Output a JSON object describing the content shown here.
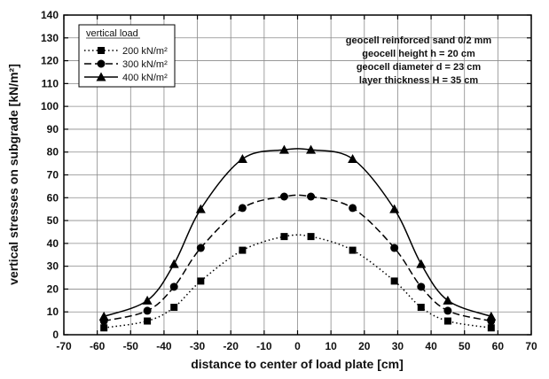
{
  "chart_data": {
    "type": "line",
    "xlabel": "distance to center of load plate [cm]",
    "ylabel": "vertical stresses on subgrade [kN/m²]",
    "xlim": [
      -70,
      70
    ],
    "ylim": [
      0,
      140
    ],
    "xticks": [
      -70,
      -60,
      -50,
      -40,
      -30,
      -20,
      -10,
      0,
      10,
      20,
      30,
      40,
      50,
      60,
      70
    ],
    "yticks": [
      0,
      10,
      20,
      30,
      40,
      50,
      60,
      70,
      80,
      90,
      100,
      110,
      120,
      130,
      140
    ],
    "grid": true,
    "legend": {
      "title": "vertical load",
      "placement": "top-left"
    },
    "annotation": [
      "geocell reinforced sand 0/2 mm",
      "geocell height h = 20 cm",
      "geocell diameter d = 23 cm",
      "layer thickness H = 35 cm"
    ],
    "x": [
      -58,
      -45,
      -37,
      -29,
      -16.5,
      -4,
      4,
      16.5,
      29,
      37,
      45,
      58
    ],
    "series": [
      {
        "name": "200 kN/m²",
        "marker": "square",
        "line": "dotted",
        "values": [
          3,
          6,
          12,
          23.5,
          37,
          43,
          43,
          37,
          23.5,
          12,
          6,
          3
        ]
      },
      {
        "name": "300 kN/m²",
        "marker": "circle",
        "line": "dashed",
        "values": [
          6,
          10.5,
          21,
          38,
          55.5,
          60.5,
          60.5,
          55.5,
          38,
          21,
          10.5,
          6
        ]
      },
      {
        "name": "400 kN/m²",
        "marker": "triangle",
        "line": "solid",
        "values": [
          8,
          15,
          31,
          55,
          77,
          81,
          81,
          77,
          55,
          31,
          15,
          8
        ]
      }
    ]
  }
}
